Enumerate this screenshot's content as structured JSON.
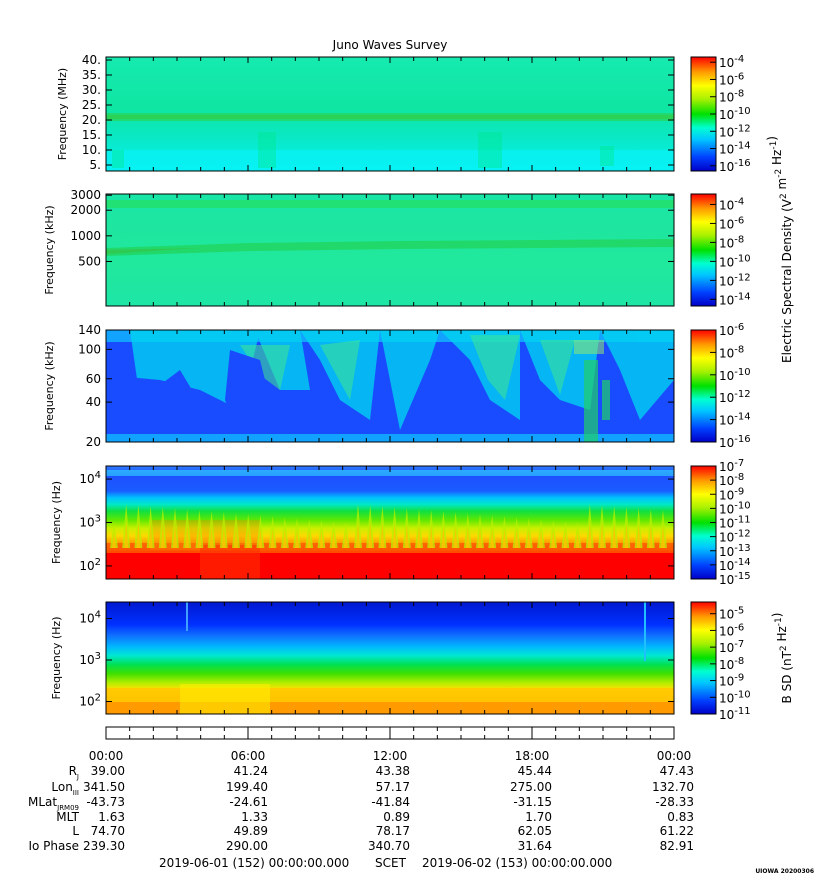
{
  "chart_data": {
    "title": "Juno Waves Survey",
    "type": "heatmap",
    "panels": [
      {
        "ylabel": "Frequency (MHz)",
        "y_scale": "linear",
        "ylim": [
          3,
          41
        ],
        "yticks": [
          5,
          10,
          15,
          20,
          25,
          30,
          35,
          40
        ],
        "ytick_labels": [
          "5.",
          "10.",
          "15.",
          "20.",
          "25.",
          "30.",
          "35.",
          "40."
        ],
        "colorbar_ticks": [
          "10^-4",
          "10^-6",
          "10^-8",
          "10^-10",
          "10^-12",
          "10^-14",
          "10^-16"
        ],
        "colorbar_range_exp": [
          -3.4,
          -16.6
        ]
      },
      {
        "ylabel": "Frequency (kHz)",
        "y_scale": "log",
        "ylim": [
          150,
          3100
        ],
        "yticks": [
          500,
          1000,
          2000,
          3000
        ],
        "ytick_labels": [
          "500",
          "1000",
          "2000",
          "3000"
        ],
        "colorbar_ticks": [
          "10^-4",
          "10^-6",
          "10^-8",
          "10^-10",
          "10^-12",
          "10^-14"
        ],
        "colorbar_range_exp": [
          -2.9,
          -14.7
        ]
      },
      {
        "ylabel": "Frequency (kHz)",
        "y_scale": "log",
        "ylim": [
          20,
          140
        ],
        "yticks": [
          20,
          40,
          60,
          100,
          140
        ],
        "ytick_labels": [
          "20",
          "40",
          "60",
          "100",
          "140"
        ],
        "colorbar_ticks": [
          "10^-6",
          "10^-8",
          "10^-10",
          "10^-12",
          "10^-14",
          "10^-16"
        ],
        "colorbar_range_exp": [
          -6,
          -16
        ]
      },
      {
        "ylabel": "Frequency (Hz)",
        "y_scale": "log",
        "ylim": [
          50,
          20000
        ],
        "yticks": [
          100,
          1000,
          10000
        ],
        "ytick_labels": [
          "10^2",
          "10^3",
          "10^4"
        ],
        "colorbar_ticks": [
          "10^-7",
          "10^-8",
          "10^-9",
          "10^-10",
          "10^-11",
          "10^-12",
          "10^-13",
          "10^-14",
          "10^-15"
        ],
        "colorbar_range_exp": [
          -7,
          -15
        ]
      },
      {
        "ylabel": "Frequency (Hz)",
        "y_scale": "log",
        "ylim": [
          50,
          25000
        ],
        "yticks": [
          100,
          1000,
          10000
        ],
        "ytick_labels": [
          "10^2",
          "10^3",
          "10^4"
        ],
        "colorbar_ticks": [
          "10^-5",
          "10^-6",
          "10^-7",
          "10^-8",
          "10^-9",
          "10^-10",
          "10^-11"
        ],
        "colorbar_range_exp": [
          -4.3,
          -11
        ]
      }
    ],
    "colorbar_labels": [
      {
        "text": "Electric Spectral Density (V^2 m^-2 Hz^-1)",
        "panels": [
          0,
          2
        ]
      },
      {
        "text": "B SD (nT^2 Hz^-1)",
        "panels": [
          4,
          4
        ]
      }
    ],
    "x_tick_labels": [
      "00:00",
      "06:00",
      "12:00",
      "18:00",
      "00:00"
    ],
    "ephemeris": [
      {
        "label": "R_J",
        "values": [
          "39.00",
          "41.24",
          "43.38",
          "45.44",
          "47.43"
        ]
      },
      {
        "label": "Lon_III",
        "values": [
          "341.50",
          "199.40",
          "57.17",
          "275.00",
          "132.70"
        ]
      },
      {
        "label": "MLat_JRM09",
        "values": [
          "-43.73",
          "-24.61",
          "-41.84",
          "-31.15",
          "-28.33"
        ]
      },
      {
        "label": "MLT",
        "values": [
          "1.63",
          "1.33",
          "0.89",
          "1.70",
          "0.83"
        ]
      },
      {
        "label": "L",
        "values": [
          "74.70",
          "49.89",
          "78.17",
          "62.05",
          "61.22"
        ]
      },
      {
        "label": "Io Phase",
        "values": [
          "239.30",
          "290.00",
          "340.70",
          "31.64",
          "82.91"
        ]
      }
    ],
    "footer": {
      "start": "2019-06-01 (152) 00:00:00.000",
      "mid": "SCET",
      "end": "2019-06-02 (153) 00:00:00.000"
    },
    "stamp": "UIOWA 20200306"
  }
}
